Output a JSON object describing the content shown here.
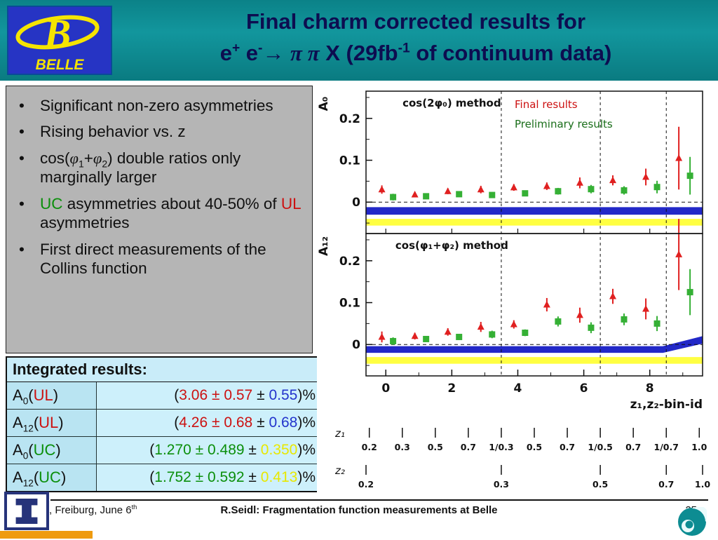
{
  "header": {
    "title_line1": "Final charm corrected results for",
    "title_line2": [
      [
        "",
        "e"
      ],
      [
        "sup",
        "+"
      ],
      [
        "",
        " e"
      ],
      [
        "sup",
        "-"
      ],
      [
        "",
        "→ "
      ],
      [
        "pi",
        "π π"
      ],
      [
        "",
        " X (29fb"
      ],
      [
        "sup",
        "-1"
      ],
      [
        "",
        " of continuum data)"
      ]
    ],
    "logo": {
      "letter": "B",
      "name": "BELLE"
    }
  },
  "bullets": [
    [
      [
        "",
        "Significant non-zero asymmetries"
      ]
    ],
    [
      [
        "",
        "Rising behavior vs. z"
      ]
    ],
    [
      [
        "",
        "cos("
      ],
      [
        "pi",
        "φ"
      ],
      [
        "sub",
        "1"
      ],
      [
        "",
        "+"
      ],
      [
        "pi",
        "φ"
      ],
      [
        "sub",
        "2"
      ],
      [
        "",
        ") double ratios only marginally larger"
      ]
    ],
    [
      [
        "green",
        "UC"
      ],
      [
        "",
        " asymmetries about 40-50% of "
      ],
      [
        "red",
        "UL"
      ],
      [
        "",
        " asymmetries"
      ]
    ],
    [
      [
        "",
        "First direct measurements of the Collins function"
      ]
    ]
  ],
  "results_table": {
    "title": "Integrated results:",
    "rows": [
      {
        "label": [
          [
            "",
            "A"
          ],
          [
            "sub",
            "0"
          ],
          [
            "",
            "("
          ],
          [
            "red",
            "UL"
          ],
          [
            "",
            ")"
          ]
        ],
        "value": [
          [
            "",
            "("
          ],
          [
            "red",
            "3.06 ± 0.57"
          ],
          [
            "",
            " ± "
          ],
          [
            "blue",
            "0.55"
          ],
          [
            "",
            ")%"
          ]
        ]
      },
      {
        "label": [
          [
            "",
            "A"
          ],
          [
            "sub",
            "12"
          ],
          [
            "",
            "("
          ],
          [
            "red",
            "UL"
          ],
          [
            "",
            ")"
          ]
        ],
        "value": [
          [
            "",
            "("
          ],
          [
            "red",
            "4.26 ± 0.68"
          ],
          [
            "",
            " ± "
          ],
          [
            "blue",
            "0.68"
          ],
          [
            "",
            ")%"
          ]
        ]
      },
      {
        "label": [
          [
            "",
            "A"
          ],
          [
            "sub",
            "0"
          ],
          [
            "",
            "("
          ],
          [
            "green",
            "UC"
          ],
          [
            "",
            ")"
          ]
        ],
        "value": [
          [
            "",
            "("
          ],
          [
            "green",
            "1.270 ± 0.489"
          ],
          [
            "",
            " ± "
          ],
          [
            "yellow",
            "0.350"
          ],
          [
            "",
            ")%"
          ]
        ]
      },
      {
        "label": [
          [
            "",
            "A"
          ],
          [
            "sub",
            "12"
          ],
          [
            "",
            "("
          ],
          [
            "green",
            "UC"
          ],
          [
            "",
            ")"
          ]
        ],
        "value": [
          [
            "",
            "("
          ],
          [
            "green",
            "1.752 ± 0.592"
          ],
          [
            "",
            " ± "
          ],
          [
            "yellow",
            "0.413"
          ],
          [
            "",
            ")%"
          ]
        ]
      }
    ]
  },
  "chart_data": {
    "type": "scatter",
    "x": [
      0,
      1,
      2,
      3,
      4,
      5,
      6,
      7,
      8,
      9
    ],
    "xlim": [
      -0.6,
      9.6
    ],
    "x_ticks": [
      0,
      2,
      4,
      6,
      8
    ],
    "x_minor_ticks": [
      1,
      3,
      5,
      7,
      9
    ],
    "xlabel": "z₁,z₂-bin-id",
    "group_dividers": [
      3.5,
      6.5,
      8.5
    ],
    "legend": {
      "entries": [
        {
          "label": "Final results",
          "color": "#cc1111"
        },
        {
          "label": "Preliminary results",
          "color": "#1a6e1a"
        }
      ]
    },
    "panels": [
      {
        "ylabel": "A₀",
        "title": "cos(2φ₀) method",
        "ylim": [
          -0.075,
          0.265
        ],
        "y_ticks": [
          0,
          0.1,
          0.2
        ],
        "y_minor_ticks": [
          -0.05,
          0.05,
          0.15,
          0.25
        ],
        "series": [
          {
            "name": "Final results",
            "marker": "triangle",
            "color": "#e02020",
            "y": [
              0.03,
              0.018,
              0.026,
              0.03,
              0.035,
              0.038,
              0.046,
              0.052,
              0.06,
              0.105
            ],
            "err": [
              0.01,
              0.006,
              0.007,
              0.009,
              0.008,
              0.009,
              0.013,
              0.012,
              0.02,
              0.075
            ]
          },
          {
            "name": "Preliminary results",
            "marker": "square",
            "color": "#35b035",
            "y": [
              0.012,
              0.014,
              0.019,
              0.017,
              0.021,
              0.026,
              0.031,
              0.028,
              0.036,
              0.063
            ],
            "err": [
              0.008,
              0.005,
              0.006,
              0.007,
              0.006,
              0.008,
              0.01,
              0.01,
              0.015,
              0.045
            ]
          }
        ],
        "bands": [
          {
            "color": "#2228c8",
            "y_top": -0.012,
            "y_bottom": -0.03
          },
          {
            "color": "#ffff42",
            "y_top": -0.04,
            "y_bottom": -0.056
          }
        ]
      },
      {
        "ylabel": "A₁₂",
        "title": "cos(φ₁+φ₂) method",
        "ylim": [
          -0.075,
          0.265
        ],
        "y_ticks": [
          0,
          0.1,
          0.2
        ],
        "y_minor_ticks": [
          -0.05,
          0.05,
          0.15,
          0.25
        ],
        "series": [
          {
            "name": "Final results",
            "marker": "triangle",
            "color": "#e02020",
            "y": [
              0.018,
              0.02,
              0.03,
              0.042,
              0.048,
              0.095,
              0.07,
              0.115,
              0.085,
              0.215
            ],
            "err": [
              0.013,
              0.008,
              0.009,
              0.012,
              0.01,
              0.016,
              0.018,
              0.018,
              0.025,
              0.085
            ]
          },
          {
            "name": "Preliminary results",
            "marker": "square",
            "color": "#35b035",
            "y": [
              0.008,
              0.013,
              0.018,
              0.024,
              0.028,
              0.055,
              0.04,
              0.06,
              0.05,
              0.125
            ],
            "err": [
              0.009,
              0.006,
              0.007,
              0.009,
              0.008,
              0.012,
              0.013,
              0.014,
              0.018,
              0.055
            ]
          }
        ],
        "bands": [
          {
            "color": "#2228c8",
            "y_top": -0.004,
            "y_bottom": -0.02,
            "bend_x": 8.4,
            "end_top": 0.02,
            "end_bottom": 0.002
          },
          {
            "color": "#ffff42",
            "y_top": -0.03,
            "y_bottom": -0.046
          }
        ]
      }
    ],
    "z1_axis": {
      "label": "z₁",
      "tick_labels": [
        "0.2",
        "0.3",
        "0.5",
        "0.7",
        "1/0.3",
        "0.5",
        "0.7",
        "1/0.5",
        "0.7",
        "1/0.7",
        "1.0"
      ]
    },
    "z2_axis": {
      "label": "z₂",
      "tick_labels": [
        "0.2",
        "0.3",
        "0.5",
        "0.7",
        "1.0"
      ],
      "tick_positions": [
        -0.6,
        3.5,
        6.5,
        8.5,
        9.6
      ]
    }
  },
  "footer": {
    "left": [
      [
        "",
        ", Freiburg, June 6"
      ],
      [
        "sup",
        "th"
      ]
    ],
    "center": "R.Seidl: Fragmentation function measurements at Belle",
    "page": "25"
  }
}
